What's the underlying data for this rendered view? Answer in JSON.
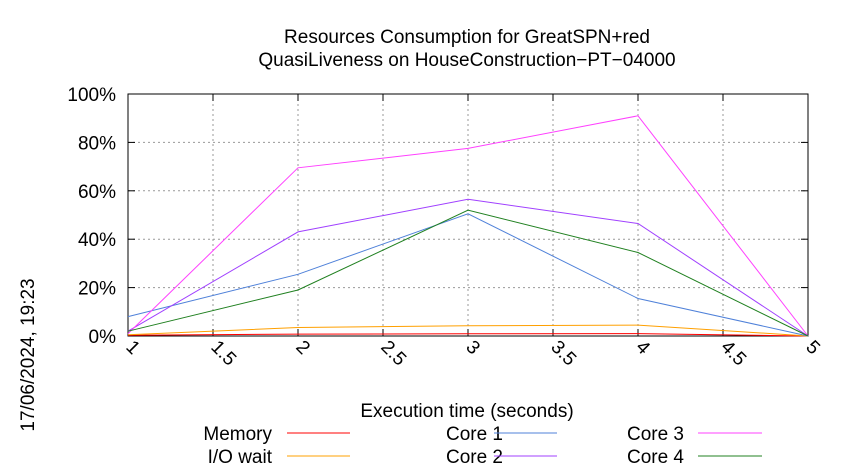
{
  "chart_data": {
    "type": "line",
    "title": [
      "Resources Consumption for GreatSPN+red",
      "QuasiLiveness on HouseConstruction−PT−04000"
    ],
    "xlabel": "Execution time (seconds)",
    "ylabel": "",
    "side_label": "17/06/2024, 19:23",
    "xlim": [
      1,
      5
    ],
    "ylim": [
      0,
      100
    ],
    "x_ticks": [
      "1",
      "1.5",
      "2",
      "2.5",
      "3",
      "3.5",
      "4",
      "4.5",
      "5"
    ],
    "y_ticks": [
      "0%",
      "20%",
      "40%",
      "60%",
      "80%",
      "100%"
    ],
    "grid": true,
    "legend_position": "bottom",
    "x": [
      1,
      2,
      3,
      4,
      5
    ],
    "series": [
      {
        "name": "Memory",
        "color": "#ff0000",
        "values": [
          0.3,
          0.8,
          0.9,
          1.0,
          0
        ]
      },
      {
        "name": "I/O wait",
        "color": "#ffa000",
        "values": [
          0.5,
          3.5,
          4.2,
          4.5,
          0
        ]
      },
      {
        "name": "Core 1",
        "color": "#4f81d9",
        "values": [
          8,
          25.5,
          50.5,
          15.5,
          0
        ]
      },
      {
        "name": "Core 2",
        "color": "#a040ff",
        "values": [
          2,
          43,
          56.5,
          46.5,
          0
        ]
      },
      {
        "name": "Core 3",
        "color": "#ff40ff",
        "values": [
          1,
          69.5,
          77.5,
          91,
          0
        ]
      },
      {
        "name": "Core 4",
        "color": "#208020",
        "values": [
          2,
          19,
          52,
          34.5,
          0
        ]
      }
    ]
  }
}
